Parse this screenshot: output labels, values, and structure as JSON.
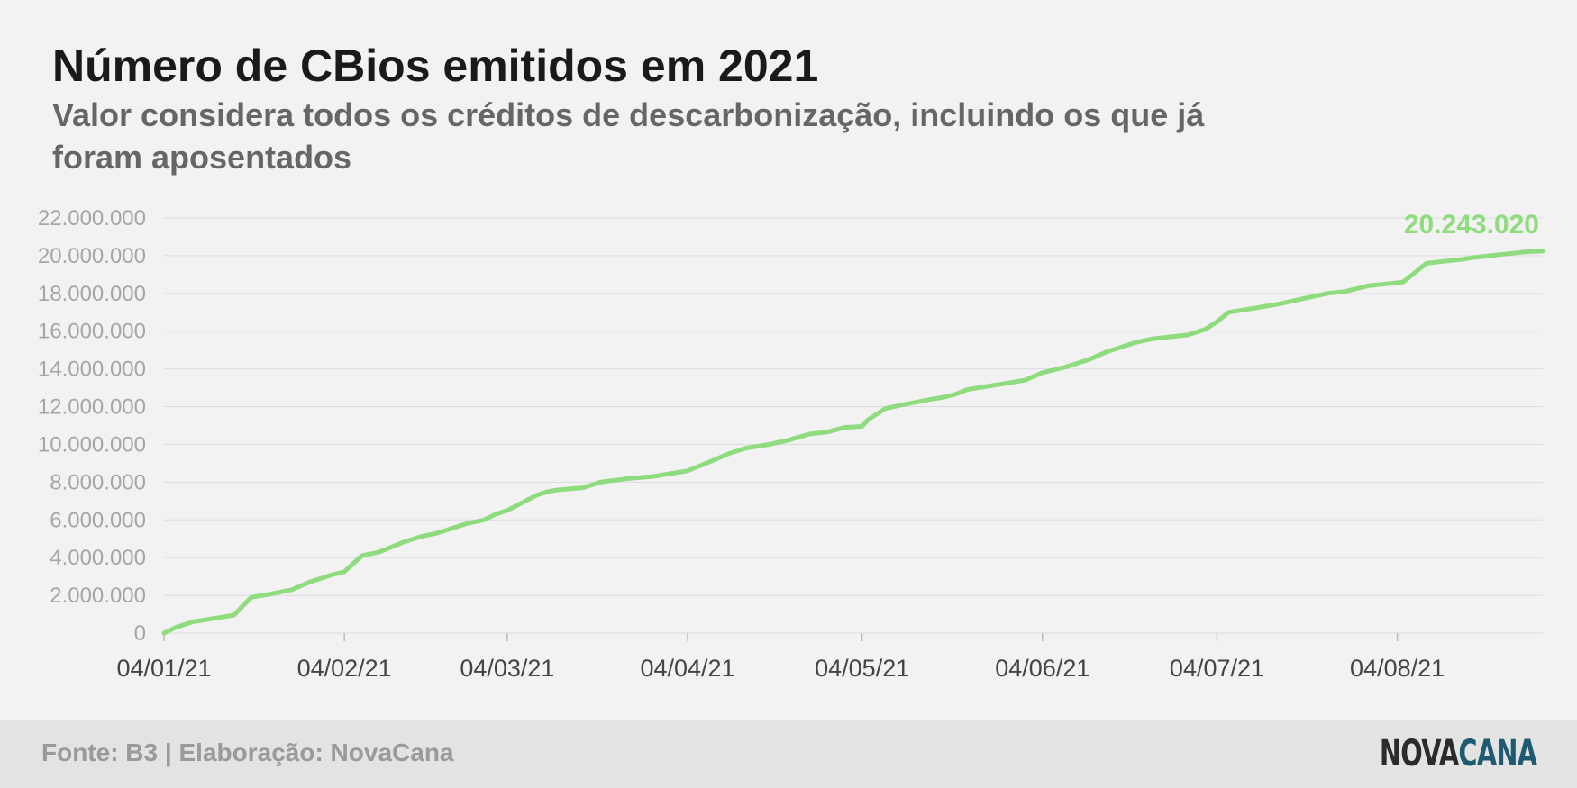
{
  "header": {
    "title": "Número de CBios emitidos em 2021",
    "subtitle": "Valor considera todos os créditos de descarbonização, incluindo os que já foram aposentados"
  },
  "footer": {
    "source": "Fonte: B3 | Elaboração: NovaCana",
    "logo_part1": "NOVA",
    "logo_part2": "CANA"
  },
  "colors": {
    "line": "#8fdc7e",
    "grid": "#dcdcdc",
    "background": "#f2f2f2",
    "footer_background": "#e3e3e3"
  },
  "chart_data": {
    "type": "line",
    "title": "Número de CBios emitidos em 2021",
    "xlabel": "",
    "ylabel": "",
    "ylim": [
      0,
      22000000
    ],
    "grid": "horizontal",
    "yticks": [
      0,
      2000000,
      4000000,
      6000000,
      8000000,
      10000000,
      12000000,
      14000000,
      16000000,
      18000000,
      20000000,
      22000000
    ],
    "ytick_labels": [
      "0",
      "2.000.000",
      "4.000.000",
      "6.000.000",
      "8.000.000",
      "10.000.000",
      "12.000.000",
      "14.000.000",
      "16.000.000",
      "18.000.000",
      "20.000.000",
      "22.000.000"
    ],
    "xticks": [
      "2021-01-04",
      "2021-02-04",
      "2021-03-04",
      "2021-04-04",
      "2021-05-04",
      "2021-06-04",
      "2021-07-04",
      "2021-08-04"
    ],
    "xtick_labels": [
      "04/01/21",
      "04/02/21",
      "04/03/21",
      "04/04/21",
      "04/05/21",
      "04/06/21",
      "04/07/21",
      "04/08/21"
    ],
    "xlim": [
      "2021-01-04",
      "2021-08-29"
    ],
    "end_label": "20.243.020",
    "series": [
      {
        "x": [
          "2021-01-04",
          "2021-01-06",
          "2021-01-09",
          "2021-01-12",
          "2021-01-16",
          "2021-01-19",
          "2021-01-22",
          "2021-01-26",
          "2021-01-29",
          "2021-01-31",
          "2021-02-02",
          "2021-02-04",
          "2021-02-07",
          "2021-02-10",
          "2021-02-14",
          "2021-02-17",
          "2021-02-20",
          "2021-02-25",
          "2021-02-28",
          "2021-03-02",
          "2021-03-04",
          "2021-03-09",
          "2021-03-11",
          "2021-03-13",
          "2021-03-17",
          "2021-03-20",
          "2021-03-25",
          "2021-03-29",
          "2021-04-02",
          "2021-04-04",
          "2021-04-08",
          "2021-04-11",
          "2021-04-14",
          "2021-04-18",
          "2021-04-21",
          "2021-04-25",
          "2021-04-28",
          "2021-05-01",
          "2021-05-04",
          "2021-05-05",
          "2021-05-08",
          "2021-05-11",
          "2021-05-16",
          "2021-05-18",
          "2021-05-20",
          "2021-05-22",
          "2021-05-26",
          "2021-05-29",
          "2021-06-01",
          "2021-06-04",
          "2021-06-08",
          "2021-06-12",
          "2021-06-15",
          "2021-06-18",
          "2021-06-20",
          "2021-06-23",
          "2021-06-26",
          "2021-06-29",
          "2021-07-02",
          "2021-07-04",
          "2021-07-06",
          "2021-07-10",
          "2021-07-14",
          "2021-07-17",
          "2021-07-20",
          "2021-07-23",
          "2021-07-26",
          "2021-07-30",
          "2021-08-02",
          "2021-08-05",
          "2021-08-09",
          "2021-08-12",
          "2021-08-15",
          "2021-08-17",
          "2021-08-20",
          "2021-08-23",
          "2021-08-26",
          "2021-08-29"
        ],
        "y": [
          0,
          300000,
          600000,
          750000,
          950000,
          1900000,
          2050000,
          2300000,
          2700000,
          2900000,
          3100000,
          3250000,
          4100000,
          4300000,
          4800000,
          5100000,
          5300000,
          5800000,
          6000000,
          6300000,
          6500000,
          7300000,
          7500000,
          7600000,
          7700000,
          8000000,
          8200000,
          8300000,
          8500000,
          8600000,
          9100000,
          9500000,
          9800000,
          10000000,
          10200000,
          10550000,
          10650000,
          10900000,
          10950000,
          11300000,
          11900000,
          12100000,
          12400000,
          12500000,
          12650000,
          12900000,
          13100000,
          13250000,
          13400000,
          13800000,
          14100000,
          14500000,
          14900000,
          15200000,
          15400000,
          15600000,
          15700000,
          15800000,
          16100000,
          16500000,
          17000000,
          17200000,
          17400000,
          17600000,
          17800000,
          18000000,
          18100000,
          18400000,
          18500000,
          18600000,
          19600000,
          19700000,
          19800000,
          19900000,
          20000000,
          20100000,
          20200000,
          20243020
        ]
      }
    ]
  }
}
